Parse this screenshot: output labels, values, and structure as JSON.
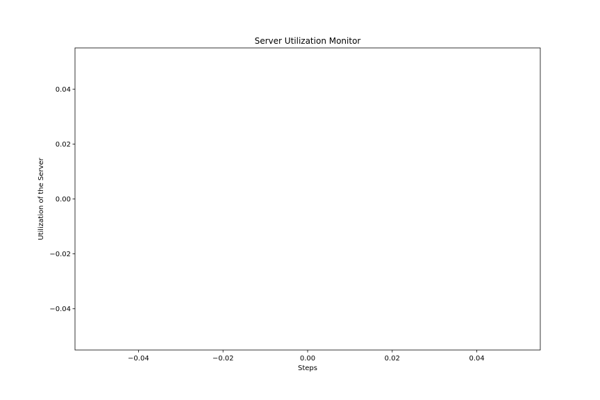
{
  "chart_data": {
    "type": "line",
    "title": "Server Utilization Monitor",
    "xlabel": "Steps",
    "ylabel": "Utilization of the Server",
    "xlim": [
      -0.055,
      0.055
    ],
    "ylim": [
      -0.055,
      0.055
    ],
    "x_ticks": [
      -0.04,
      -0.02,
      0.0,
      0.02,
      0.04
    ],
    "x_tick_labels": [
      "−0.04",
      "−0.02",
      "0.00",
      "0.02",
      "0.04"
    ],
    "y_ticks": [
      -0.04,
      -0.02,
      0.0,
      0.02,
      0.04
    ],
    "y_tick_labels": [
      "−0.04",
      "−0.02",
      "0.00",
      "0.02",
      "0.04"
    ],
    "grid": false,
    "series": []
  }
}
